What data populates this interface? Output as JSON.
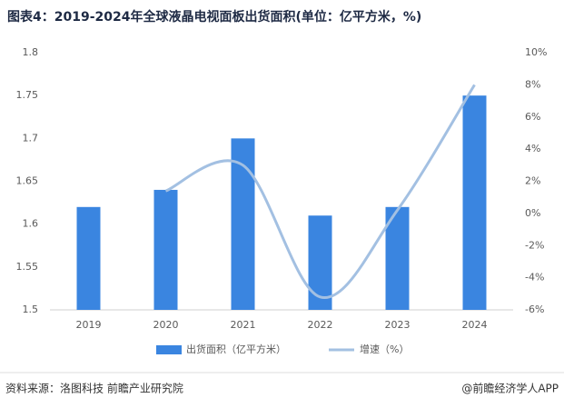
{
  "chart_data": {
    "type": "bar_line",
    "title": "图表4：2019-2024年全球液晶电视面板出货面积(单位：亿平方米，%)",
    "categories": [
      "2019",
      "2020",
      "2021",
      "2022",
      "2023",
      "2024"
    ],
    "series": [
      {
        "name": "出货面积（亿平方米）",
        "color": "#3a85e0",
        "type": "bar",
        "values": [
          1.62,
          1.64,
          1.7,
          1.61,
          1.62,
          1.75
        ]
      },
      {
        "name": "增速（%）",
        "color": "#a3c0e2",
        "type": "line",
        "axis": "y2",
        "values": [
          null,
          1.4,
          3.0,
          -5.2,
          0.2,
          8.0
        ]
      }
    ],
    "ylim": [
      1.5,
      1.8
    ],
    "yticks": [
      1.5,
      1.55,
      1.6,
      1.65,
      1.7,
      1.75,
      1.8
    ],
    "y2lim": [
      -6,
      10
    ],
    "y2ticks": [
      {
        "value": -6,
        "label": "-6%"
      },
      {
        "value": -4,
        "label": "-4%"
      },
      {
        "value": -2,
        "label": "-2%"
      },
      {
        "value": 0,
        "label": "0%"
      },
      {
        "value": 2,
        "label": "2%"
      },
      {
        "value": 4,
        "label": "4%"
      },
      {
        "value": 6,
        "label": "6%"
      },
      {
        "value": 8,
        "label": "8%"
      },
      {
        "value": 10,
        "label": "10%"
      }
    ],
    "source": "资料来源：洛图科技 前瞻产业研究院",
    "credit": "@前瞻经济学人APP"
  }
}
